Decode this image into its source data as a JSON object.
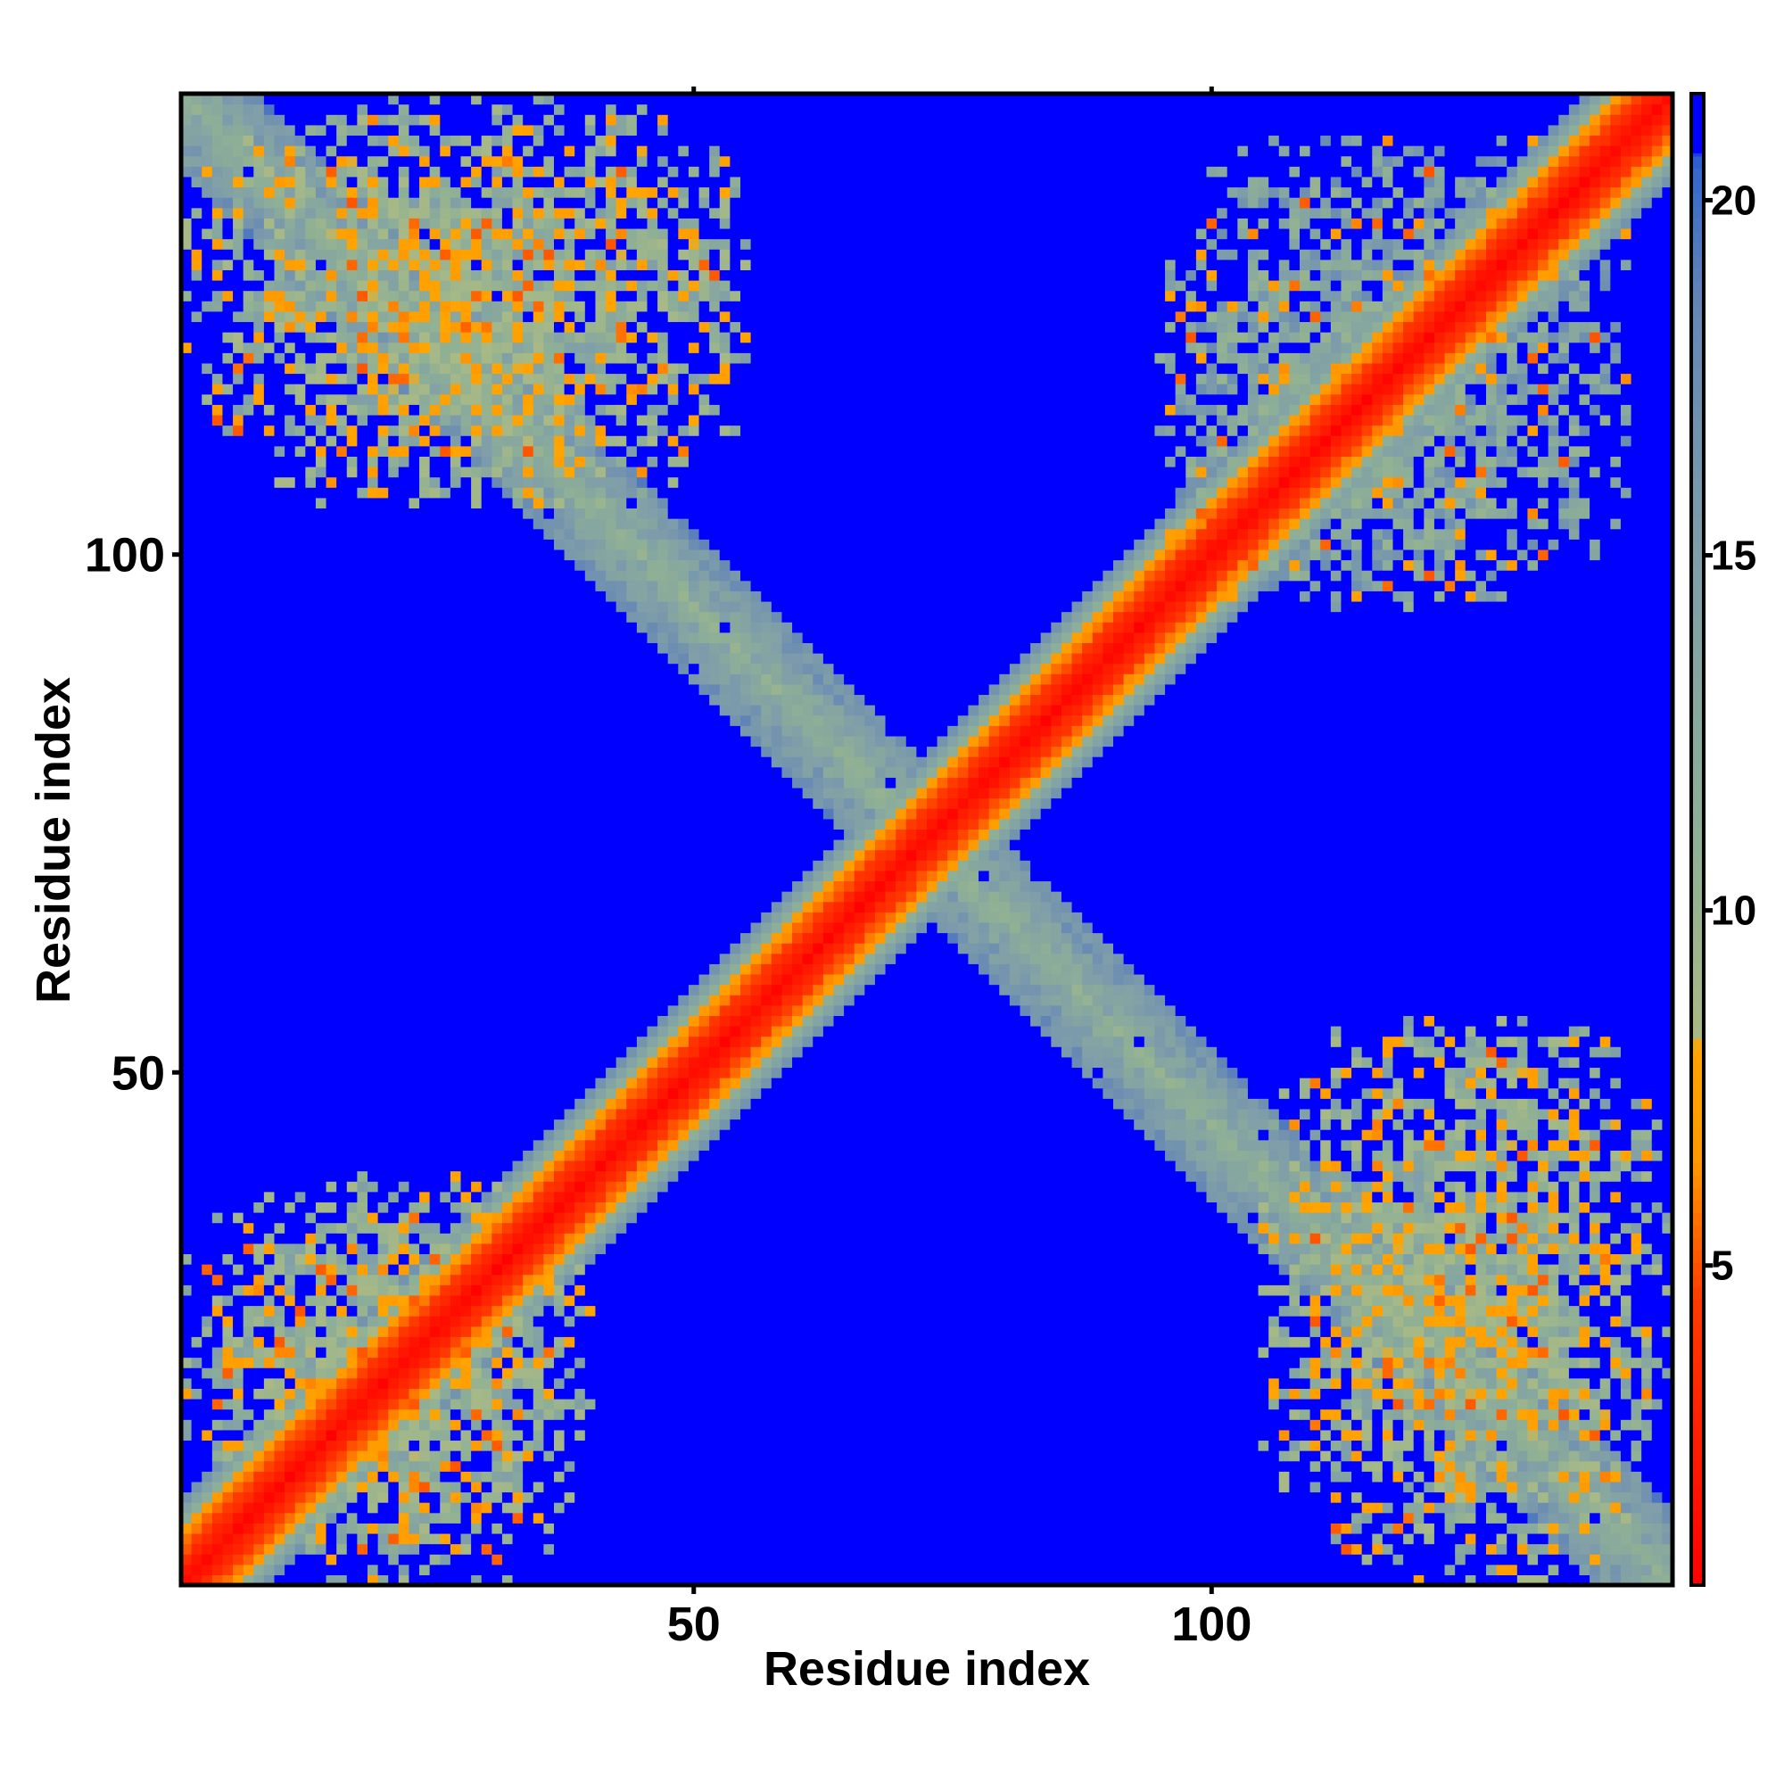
{
  "chart_data": {
    "type": "heatmap",
    "title": "",
    "xlabel": "Residue index",
    "ylabel": "Residue index",
    "n_residues": 144,
    "xlim": [
      1,
      144
    ],
    "ylim": [
      1,
      144
    ],
    "x_ticks": [
      50,
      100
    ],
    "y_ticks": [
      50,
      100
    ],
    "colorbar": {
      "range": [
        0.5,
        21.5
      ],
      "ticks": [
        5,
        10,
        15,
        20
      ],
      "color_stops": [
        {
          "value": 0.5,
          "color": "#ff0000"
        },
        {
          "value": 4.5,
          "color": "#ff3a00"
        },
        {
          "value": 6.5,
          "color": "#ff9a00"
        },
        {
          "value": 8.1,
          "color": "#ffa500"
        },
        {
          "value": 8.2,
          "color": "#a9b986"
        },
        {
          "value": 11.0,
          "color": "#8fb095"
        },
        {
          "value": 15.0,
          "color": "#7f9ea9"
        },
        {
          "value": 18.5,
          "color": "#6687b5"
        },
        {
          "value": 20.5,
          "color": "#3366cc"
        },
        {
          "value": 21.0,
          "color": "#0000ff"
        }
      ]
    },
    "background_value": 21,
    "background_color": "#0000ff",
    "value_description": "pairwise residue distance map; symmetric about the main diagonal",
    "features": [
      {
        "type": "diagonal",
        "value_center": 1,
        "width_residues": 16
      },
      {
        "type": "anti_diagonal",
        "from": [
          1,
          144
        ],
        "to": [
          144,
          1
        ],
        "value_center": 12,
        "width_residues": 14
      },
      {
        "type": "cluster",
        "x_range": [
          1,
          40
        ],
        "y_range": [
          1,
          40
        ],
        "value_center": 11
      },
      {
        "type": "cluster",
        "x_range": [
          105,
          144
        ],
        "y_range": [
          1,
          55
        ],
        "value_center": 11
      },
      {
        "type": "cluster",
        "x_range": [
          1,
          55
        ],
        "y_range": [
          105,
          144
        ],
        "value_center": 11
      },
      {
        "type": "cluster",
        "x_range": [
          95,
          140
        ],
        "y_range": [
          95,
          140
        ],
        "value_center": 14
      }
    ]
  }
}
